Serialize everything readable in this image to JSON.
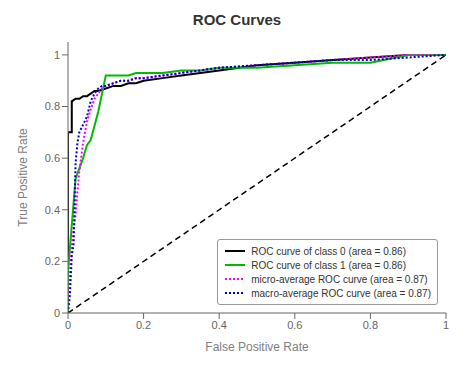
{
  "chart_data": {
    "type": "line",
    "title": "ROC Curves",
    "xlabel": "False Positive Rate",
    "ylabel": "True Positive Rate",
    "xlim": [
      0.0,
      1.0
    ],
    "ylim": [
      0.0,
      1.05
    ],
    "xticks": [
      0,
      0.2,
      0.4,
      0.6,
      0.8,
      1
    ],
    "yticks": [
      0,
      0.2,
      0.4,
      0.6,
      0.8,
      1
    ],
    "grid": false,
    "legend": "lower right",
    "series": [
      {
        "name": "ROC curve of class 0 (area = 0.86)",
        "color": "#000000",
        "line_style": "solid",
        "x": [
          0.0,
          0.0,
          0.01,
          0.01,
          0.02,
          0.03,
          0.04,
          0.05,
          0.06,
          0.07,
          0.08,
          0.1,
          0.12,
          0.14,
          0.16,
          0.18,
          0.2,
          0.25,
          0.3,
          0.35,
          0.4,
          0.5,
          0.6,
          0.7,
          0.8,
          0.9,
          1.0
        ],
        "values": [
          0.0,
          0.7,
          0.7,
          0.82,
          0.83,
          0.83,
          0.84,
          0.84,
          0.85,
          0.86,
          0.86,
          0.87,
          0.88,
          0.88,
          0.89,
          0.89,
          0.9,
          0.91,
          0.92,
          0.93,
          0.94,
          0.96,
          0.97,
          0.98,
          0.99,
          1.0,
          1.0
        ]
      },
      {
        "name": "ROC curve of class 1 (area = 0.86)",
        "color": "#00bb00",
        "line_style": "solid",
        "x": [
          0.0,
          0.0,
          0.0,
          0.02,
          0.04,
          0.05,
          0.06,
          0.08,
          0.1,
          0.12,
          0.14,
          0.16,
          0.18,
          0.2,
          0.22,
          0.25,
          0.3,
          0.35,
          0.4,
          0.5,
          0.6,
          0.7,
          0.8,
          0.9,
          1.0
        ],
        "values": [
          0.0,
          0.08,
          0.16,
          0.52,
          0.6,
          0.65,
          0.67,
          0.78,
          0.92,
          0.92,
          0.92,
          0.92,
          0.93,
          0.93,
          0.93,
          0.93,
          0.94,
          0.94,
          0.95,
          0.95,
          0.96,
          0.97,
          0.97,
          1.0,
          1.0
        ]
      },
      {
        "name": "micro-average ROC curve (area = 0.87)",
        "color": "#ff00ff",
        "line_style": "dotted",
        "x": [
          0.0,
          0.005,
          0.01,
          0.015,
          0.02,
          0.025,
          0.03,
          0.04,
          0.05,
          0.06,
          0.07,
          0.08,
          0.09,
          0.1,
          0.12,
          0.14,
          0.16,
          0.18,
          0.2,
          0.25,
          0.3,
          0.35,
          0.4,
          0.5,
          0.6,
          0.7,
          0.8,
          0.9,
          1.0
        ],
        "values": [
          0.0,
          0.15,
          0.26,
          0.33,
          0.38,
          0.47,
          0.55,
          0.66,
          0.74,
          0.79,
          0.83,
          0.85,
          0.87,
          0.88,
          0.89,
          0.9,
          0.9,
          0.91,
          0.91,
          0.92,
          0.93,
          0.94,
          0.95,
          0.96,
          0.97,
          0.98,
          0.99,
          1.0,
          1.0
        ]
      },
      {
        "name": "macro-average ROC curve (area = 0.87)",
        "color": "#0000cc",
        "line_style": "dotted",
        "x": [
          0.0,
          0.005,
          0.01,
          0.015,
          0.02,
          0.025,
          0.03,
          0.04,
          0.05,
          0.06,
          0.07,
          0.08,
          0.09,
          0.1,
          0.12,
          0.14,
          0.16,
          0.18,
          0.2,
          0.25,
          0.3,
          0.35,
          0.4,
          0.5,
          0.6,
          0.7,
          0.8,
          0.9,
          1.0
        ],
        "values": [
          0.0,
          0.07,
          0.22,
          0.27,
          0.58,
          0.66,
          0.7,
          0.73,
          0.76,
          0.82,
          0.85,
          0.87,
          0.88,
          0.88,
          0.89,
          0.9,
          0.9,
          0.91,
          0.91,
          0.92,
          0.93,
          0.94,
          0.95,
          0.96,
          0.97,
          0.98,
          0.98,
          0.99,
          1.0
        ]
      },
      {
        "color": "#000000",
        "line_style": "dashed",
        "x": [
          0,
          1
        ],
        "values": [
          0,
          1
        ]
      }
    ]
  }
}
